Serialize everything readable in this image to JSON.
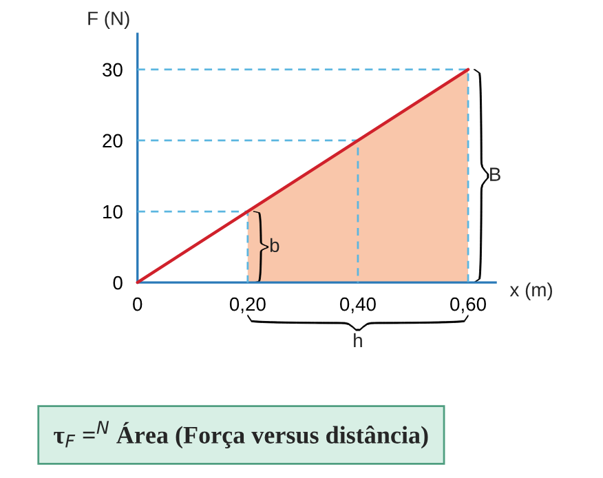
{
  "chart_data": {
    "type": "line",
    "xlabel": "x (m)",
    "ylabel": "F (N)",
    "series": [
      {
        "type": "area",
        "color": "#f9c6aa",
        "x": [
          0.2,
          0.4,
          0.6
        ],
        "values": [
          10,
          20,
          30
        ]
      },
      {
        "type": "line",
        "color": "#5bb6e0",
        "line_style": "dashed",
        "x": [
          0,
          0.2,
          0.2
        ],
        "values": [
          10,
          10,
          0
        ]
      },
      {
        "type": "line",
        "color": "#5bb6e0",
        "line_style": "dashed",
        "x": [
          0,
          0.4,
          0.4
        ],
        "values": [
          20,
          20,
          0
        ]
      },
      {
        "type": "line",
        "color": "#5bb6e0",
        "line_style": "dashed",
        "x": [
          0,
          0.6,
          0.6
        ],
        "values": [
          30,
          30,
          0
        ]
      },
      {
        "color": "#d0212b",
        "line_style": "solid",
        "x": [
          0,
          0.6
        ],
        "values": [
          0,
          30
        ]
      }
    ],
    "xlim": [
      0,
      0.65
    ],
    "ylim": [
      0,
      35
    ],
    "xticks": [
      0,
      {
        "value": 0.2,
        "label": "0,20"
      },
      {
        "value": 0.4,
        "label": "0,40"
      },
      {
        "value": 0.6,
        "label": "0,60"
      }
    ],
    "yticks": [
      0,
      10,
      20,
      30
    ],
    "grid": false,
    "legend": false,
    "annotations": [
      {
        "text": "b",
        "x": 0.2,
        "y": 5
      },
      {
        "text": "B",
        "x": 0.6,
        "y": 15
      },
      {
        "text": "h",
        "x": 0.4,
        "y": 0
      },
      "τ$_{F}$ =$^{N}$ Área (Força versus distância)"
    ]
  }
}
